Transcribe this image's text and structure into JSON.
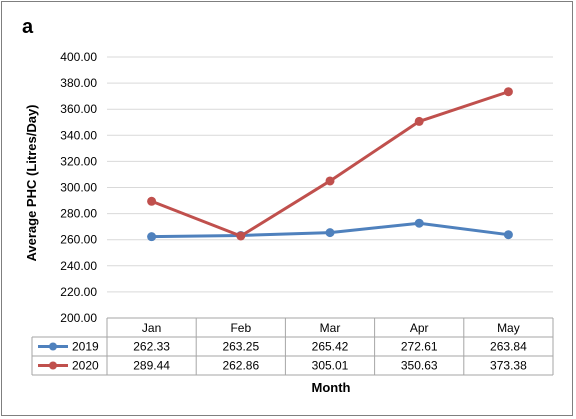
{
  "panel_label": "a",
  "chart_data": {
    "type": "line",
    "title": "",
    "xlabel": "Month",
    "ylabel": "Average PHC (Litres/Day)",
    "categories": [
      "Jan",
      "Feb",
      "Mar",
      "Apr",
      "May"
    ],
    "ylim": [
      200,
      400
    ],
    "yticks": [
      "200.00",
      "220.00",
      "240.00",
      "260.00",
      "280.00",
      "300.00",
      "320.00",
      "340.00",
      "360.00",
      "380.00",
      "400.00"
    ],
    "grid": true,
    "legend": "data-table",
    "series": [
      {
        "name": "2019",
        "color": "#4f81bd",
        "values": [
          262.33,
          263.25,
          265.42,
          272.61,
          263.84
        ],
        "labels": [
          "262.33",
          "263.25",
          "265.42",
          "272.61",
          "263.84"
        ]
      },
      {
        "name": "2020",
        "color": "#c0504d",
        "values": [
          289.44,
          262.86,
          305.01,
          350.63,
          373.38
        ],
        "labels": [
          "289.44",
          "262.86",
          "305.01",
          "350.63",
          "373.38"
        ]
      }
    ]
  }
}
